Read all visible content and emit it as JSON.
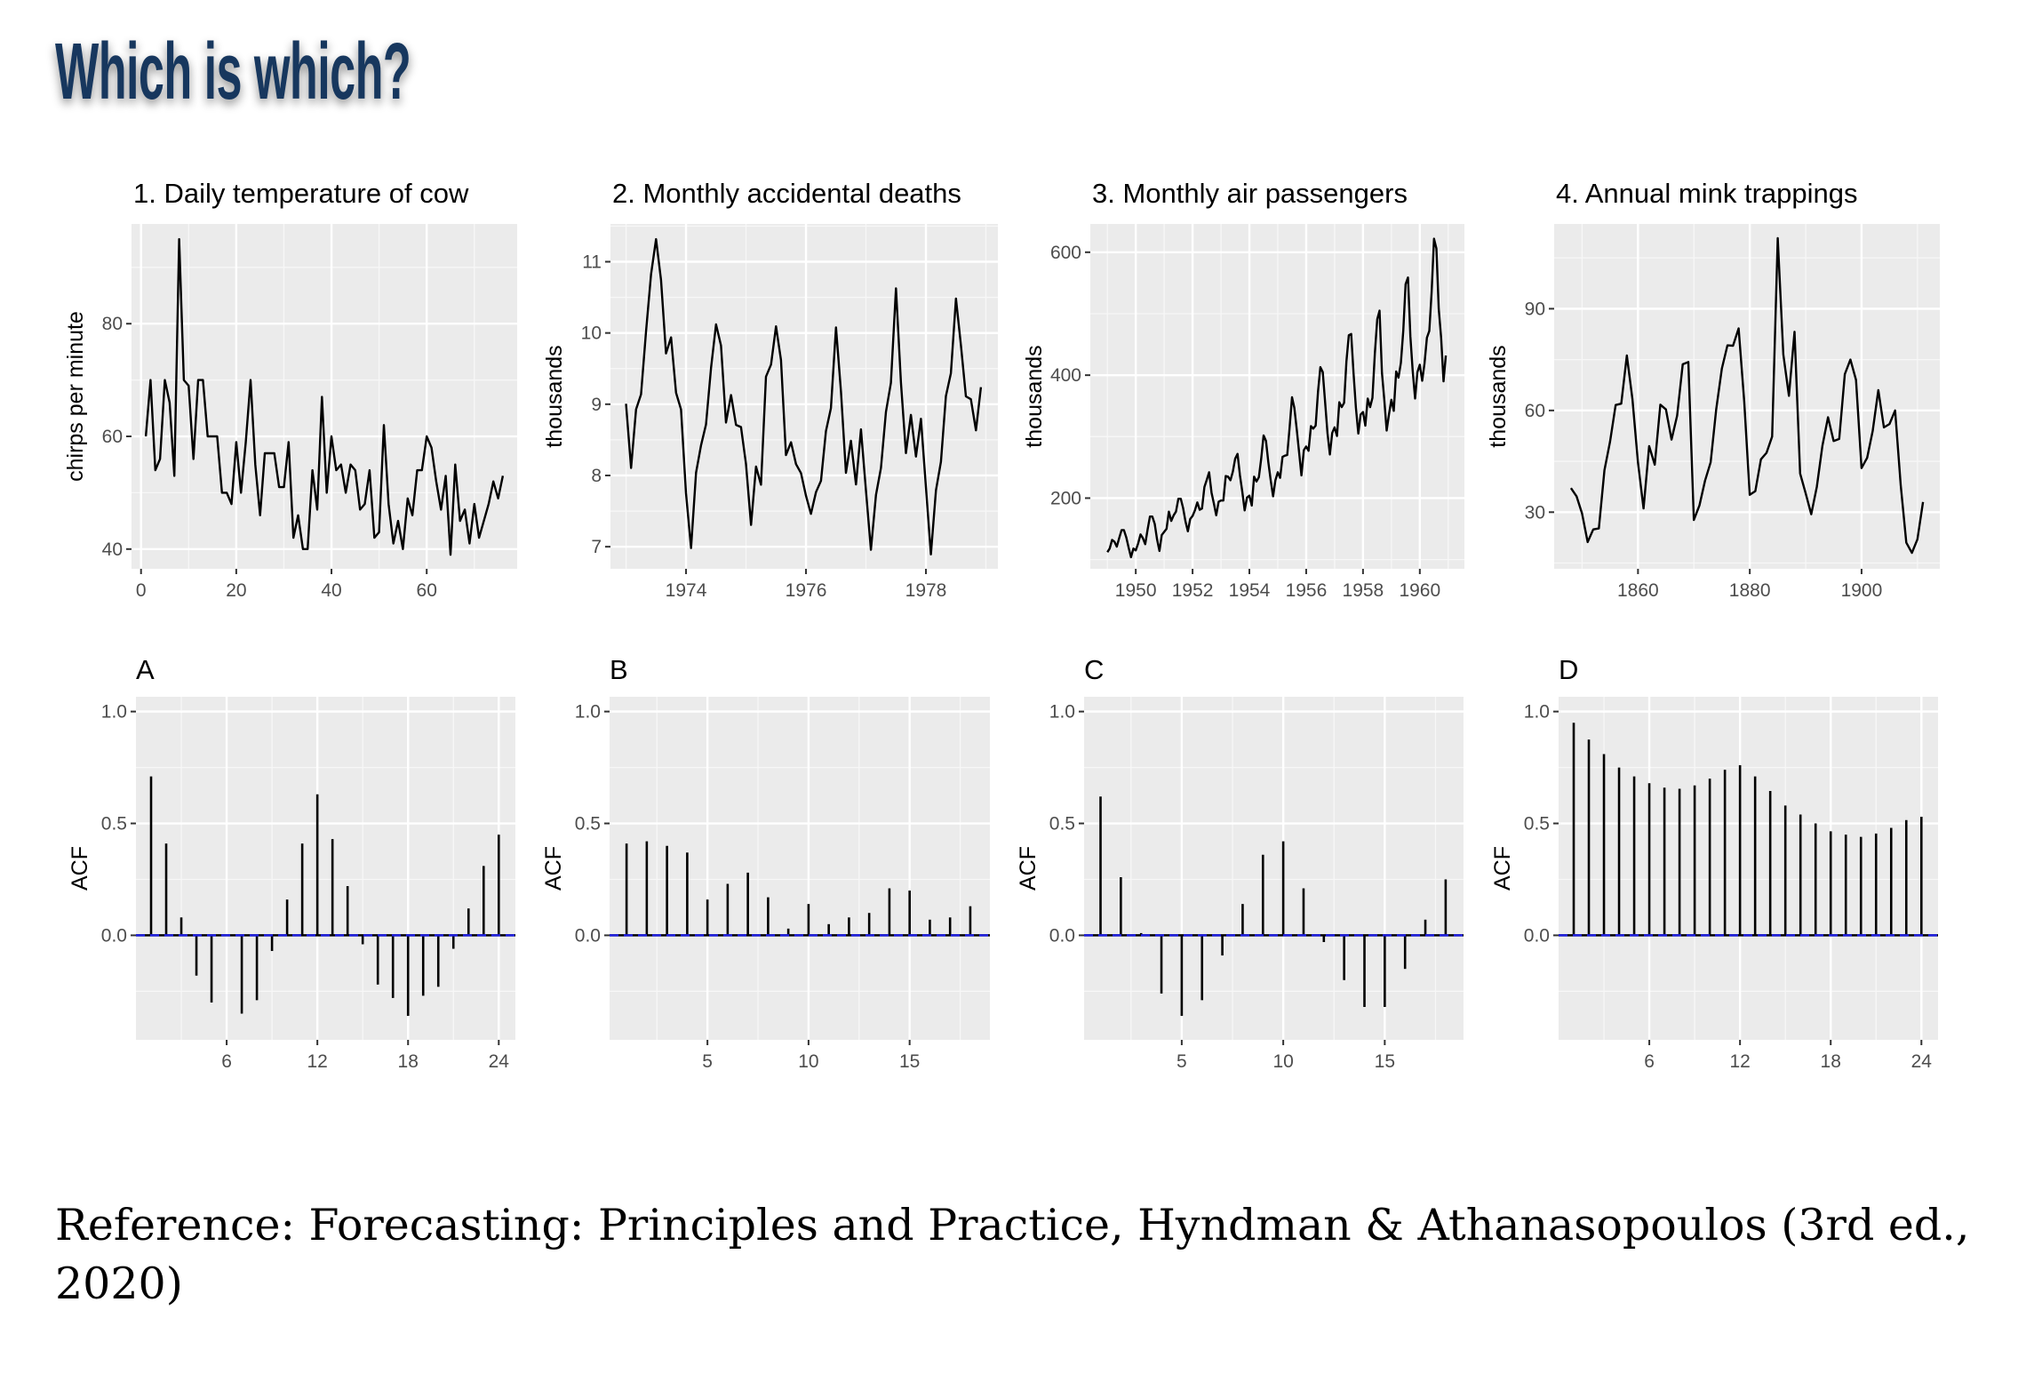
{
  "slide": {
    "title": "Which is which?",
    "reference": "Reference: Forecasting: Principles and Practice, Hyndman & Athanasopoulos (3rd ed., 2020)"
  },
  "colors": {
    "title": "#17375e",
    "panel_bg": "#ebebeb",
    "line": "#000000",
    "acf_bound": "#1f1fe0"
  },
  "chart_data": [
    {
      "type": "line",
      "title": "1. Daily temperature of cow",
      "xlabel": "",
      "ylabel": "chirps per minute",
      "x_start": 1,
      "x_step": 1,
      "values": [
        60,
        70,
        54,
        56,
        70,
        66,
        53,
        95,
        70,
        69,
        56,
        70,
        70,
        60,
        60,
        60,
        50,
        50,
        48,
        59,
        50,
        59,
        70,
        55,
        46,
        57,
        57,
        57,
        51,
        51,
        59,
        42,
        46,
        40,
        40,
        54,
        47,
        67,
        50,
        60,
        54,
        55,
        50,
        55,
        54,
        47,
        48,
        54,
        42,
        43,
        62,
        48,
        41,
        45,
        40,
        49,
        46,
        54,
        54,
        60,
        58,
        52,
        47,
        53,
        39,
        55,
        45,
        47,
        41,
        48,
        42,
        45,
        48,
        52,
        49,
        53
      ],
      "xlim": [
        -2,
        79
      ],
      "ylim": [
        36.5,
        97.7
      ],
      "xticks": [
        0,
        20,
        40,
        60
      ],
      "xtick_labels": [
        "0",
        "20",
        "40",
        "60"
      ],
      "yticks": [
        40,
        60,
        80
      ],
      "ytick_labels": [
        "40",
        "60",
        "80"
      ],
      "grid": true
    },
    {
      "type": "line",
      "title": "2. Monthly accidental deaths",
      "xlabel": "",
      "ylabel": "thousands",
      "x_start": 1973,
      "x_step": 0.0833333,
      "values": [
        9.007,
        8.106,
        8.928,
        9.137,
        10.017,
        10.826,
        11.317,
        10.744,
        9.713,
        9.938,
        9.161,
        8.927,
        7.75,
        6.981,
        8.038,
        8.422,
        8.714,
        9.512,
        10.12,
        9.823,
        8.743,
        9.129,
        8.71,
        8.68,
        8.162,
        7.306,
        8.124,
        7.87,
        9.387,
        9.556,
        10.093,
        9.62,
        8.285,
        8.466,
        8.16,
        8.034,
        7.717,
        7.461,
        7.767,
        7.925,
        8.623,
        8.945,
        10.078,
        9.179,
        8.037,
        8.488,
        7.874,
        8.647,
        7.792,
        6.957,
        7.726,
        8.106,
        8.89,
        9.299,
        10.625,
        9.302,
        8.314,
        8.85,
        8.265,
        8.796,
        7.836,
        6.892,
        7.791,
        8.192,
        9.115,
        9.434,
        10.484,
        9.827,
        9.11,
        9.07,
        8.633,
        9.24
      ],
      "xlim": [
        1972.74,
        1979.2
      ],
      "ylim": [
        6.69,
        11.53
      ],
      "xticks": [
        1974,
        1976,
        1978
      ],
      "xtick_labels": [
        "1974",
        "1976",
        "1978"
      ],
      "yticks": [
        7,
        8,
        9,
        10,
        11
      ],
      "ytick_labels": [
        "7",
        "8",
        "9",
        "10",
        "11"
      ],
      "grid": true
    },
    {
      "type": "line",
      "title": "3. Monthly air passengers",
      "xlabel": "",
      "ylabel": "thousands",
      "x_start": 1949,
      "x_step": 0.0833333,
      "values": [
        112,
        118,
        132,
        129,
        121,
        135,
        148,
        148,
        136,
        119,
        104,
        118,
        115,
        126,
        141,
        135,
        125,
        149,
        170,
        170,
        158,
        133,
        114,
        140,
        145,
        150,
        178,
        163,
        172,
        178,
        199,
        199,
        184,
        162,
        146,
        166,
        171,
        180,
        193,
        181,
        183,
        218,
        230,
        242,
        209,
        191,
        172,
        194,
        196,
        196,
        236,
        235,
        229,
        243,
        264,
        272,
        237,
        211,
        180,
        201,
        204,
        188,
        235,
        227,
        234,
        264,
        302,
        293,
        259,
        229,
        203,
        229,
        242,
        233,
        267,
        269,
        270,
        315,
        364,
        347,
        312,
        274,
        237,
        278,
        284,
        277,
        317,
        313,
        318,
        374,
        413,
        405,
        355,
        306,
        271,
        306,
        315,
        301,
        356,
        348,
        355,
        422,
        465,
        467,
        404,
        347,
        305,
        336,
        340,
        318,
        362,
        348,
        363,
        435,
        491,
        505,
        404,
        359,
        310,
        337,
        360,
        342,
        406,
        396,
        420,
        472,
        548,
        559,
        463,
        407,
        362,
        405,
        417,
        391,
        419,
        461,
        472,
        535,
        622,
        606,
        508,
        461,
        390,
        432
      ],
      "xlim": [
        1948.4,
        1961.57
      ],
      "ylim": [
        85,
        646
      ],
      "xticks": [
        1950,
        1952,
        1954,
        1956,
        1958,
        1960
      ],
      "xtick_labels": [
        "1950",
        "1952",
        "1954",
        "1956",
        "1958",
        "1960"
      ],
      "yticks": [
        200,
        400,
        600
      ],
      "ytick_labels": [
        "200",
        "400",
        "600"
      ],
      "grid": true
    },
    {
      "type": "line",
      "title": "4. Annual mink trappings",
      "xlabel": "",
      "ylabel": "thousands",
      "x_start": 1848,
      "x_step": 1,
      "values": [
        37.1,
        34.7,
        29.6,
        21.2,
        24.9,
        25.2,
        42.4,
        50.8,
        61.6,
        62.0,
        76.2,
        63.3,
        44.7,
        31.1,
        49.5,
        44.0,
        61.7,
        60.3,
        51.4,
        58.5,
        73.6,
        74.3,
        27.7,
        32.0,
        39.3,
        44.7,
        60.4,
        72.3,
        79.2,
        79.1,
        84.2,
        62.6,
        35.1,
        36.2,
        45.6,
        47.5,
        52.3,
        110.8,
        76.5,
        64.3,
        83.2,
        41.4,
        35.6,
        29.4,
        37.5,
        49.6,
        58.0,
        51.0,
        51.6,
        70.7,
        75.0,
        69.0,
        43.0,
        46.0,
        54.0,
        66.0,
        55.0,
        56.0,
        60.0,
        38.0,
        21.0,
        18.0,
        22.0,
        33.0
      ],
      "xlim": [
        1845,
        1914
      ],
      "ylim": [
        13.3,
        115
      ],
      "xticks": [
        1860,
        1880,
        1900
      ],
      "xtick_labels": [
        "1860",
        "1880",
        "1900"
      ],
      "yticks": [
        30,
        60,
        90
      ],
      "ytick_labels": [
        "30",
        "60",
        "90"
      ],
      "grid": true
    },
    {
      "type": "bar",
      "title": "A",
      "xlabel": "",
      "ylabel": "ACF",
      "values": [
        0.71,
        0.41,
        0.08,
        -0.18,
        -0.3,
        0.0,
        -0.35,
        -0.29,
        -0.07,
        0.16,
        0.41,
        0.63,
        0.43,
        0.22,
        -0.04,
        -0.22,
        -0.28,
        -0.36,
        -0.27,
        -0.23,
        -0.06,
        0.12,
        0.31,
        0.45
      ],
      "xlim": [
        0,
        25.1
      ],
      "ylim": [
        -0.467,
        1.066
      ],
      "xticks": [
        6,
        12,
        18,
        24
      ],
      "xtick_labels": [
        "6",
        "12",
        "18",
        "24"
      ],
      "yticks": [
        0,
        0.5,
        1
      ],
      "ytick_labels": [
        "0.0",
        "0.5",
        "1.0"
      ],
      "grid": true
    },
    {
      "type": "bar",
      "title": "B",
      "xlabel": "",
      "ylabel": "ACF",
      "values": [
        0.41,
        0.42,
        0.4,
        0.37,
        0.16,
        0.23,
        0.28,
        0.17,
        0.03,
        0.14,
        0.05,
        0.08,
        0.1,
        0.21,
        0.2,
        0.07,
        0.08,
        0.13
      ],
      "xlim": [
        0.16,
        18.97
      ],
      "ylim": [
        -0.467,
        1.066
      ],
      "xticks": [
        5,
        10,
        15
      ],
      "xtick_labels": [
        "5",
        "10",
        "15"
      ],
      "yticks": [
        0,
        0.5,
        1
      ],
      "ytick_labels": [
        "0.0",
        "0.5",
        "1.0"
      ],
      "grid": true
    },
    {
      "type": "bar",
      "title": "C",
      "xlabel": "",
      "ylabel": "ACF",
      "values": [
        0.62,
        0.26,
        0.01,
        -0.26,
        -0.36,
        -0.29,
        -0.09,
        0.14,
        0.36,
        0.42,
        0.21,
        -0.03,
        -0.2,
        -0.32,
        -0.32,
        -0.15,
        0.07,
        0.25
      ],
      "xlim": [
        0.19,
        18.88
      ],
      "ylim": [
        -0.467,
        1.066
      ],
      "xticks": [
        5,
        10,
        15
      ],
      "xtick_labels": [
        "5",
        "10",
        "15"
      ],
      "yticks": [
        0,
        0.5,
        1
      ],
      "ytick_labels": [
        "0.0",
        "0.5",
        "1.0"
      ],
      "grid": true
    },
    {
      "type": "bar",
      "title": "D",
      "xlabel": "",
      "ylabel": "ACF",
      "values": [
        0.95,
        0.875,
        0.81,
        0.75,
        0.71,
        0.68,
        0.66,
        0.655,
        0.67,
        0.7,
        0.74,
        0.76,
        0.71,
        0.645,
        0.58,
        0.54,
        0.5,
        0.465,
        0.45,
        0.44,
        0.455,
        0.48,
        0.515,
        0.53
      ],
      "xlim": [
        0,
        25.1
      ],
      "ylim": [
        -0.467,
        1.066
      ],
      "xticks": [
        6,
        12,
        18,
        24
      ],
      "xtick_labels": [
        "6",
        "12",
        "18",
        "24"
      ],
      "yticks": [
        0,
        0.5,
        1
      ],
      "ytick_labels": [
        "0.0",
        "0.5",
        "1.0"
      ],
      "grid": true
    }
  ]
}
